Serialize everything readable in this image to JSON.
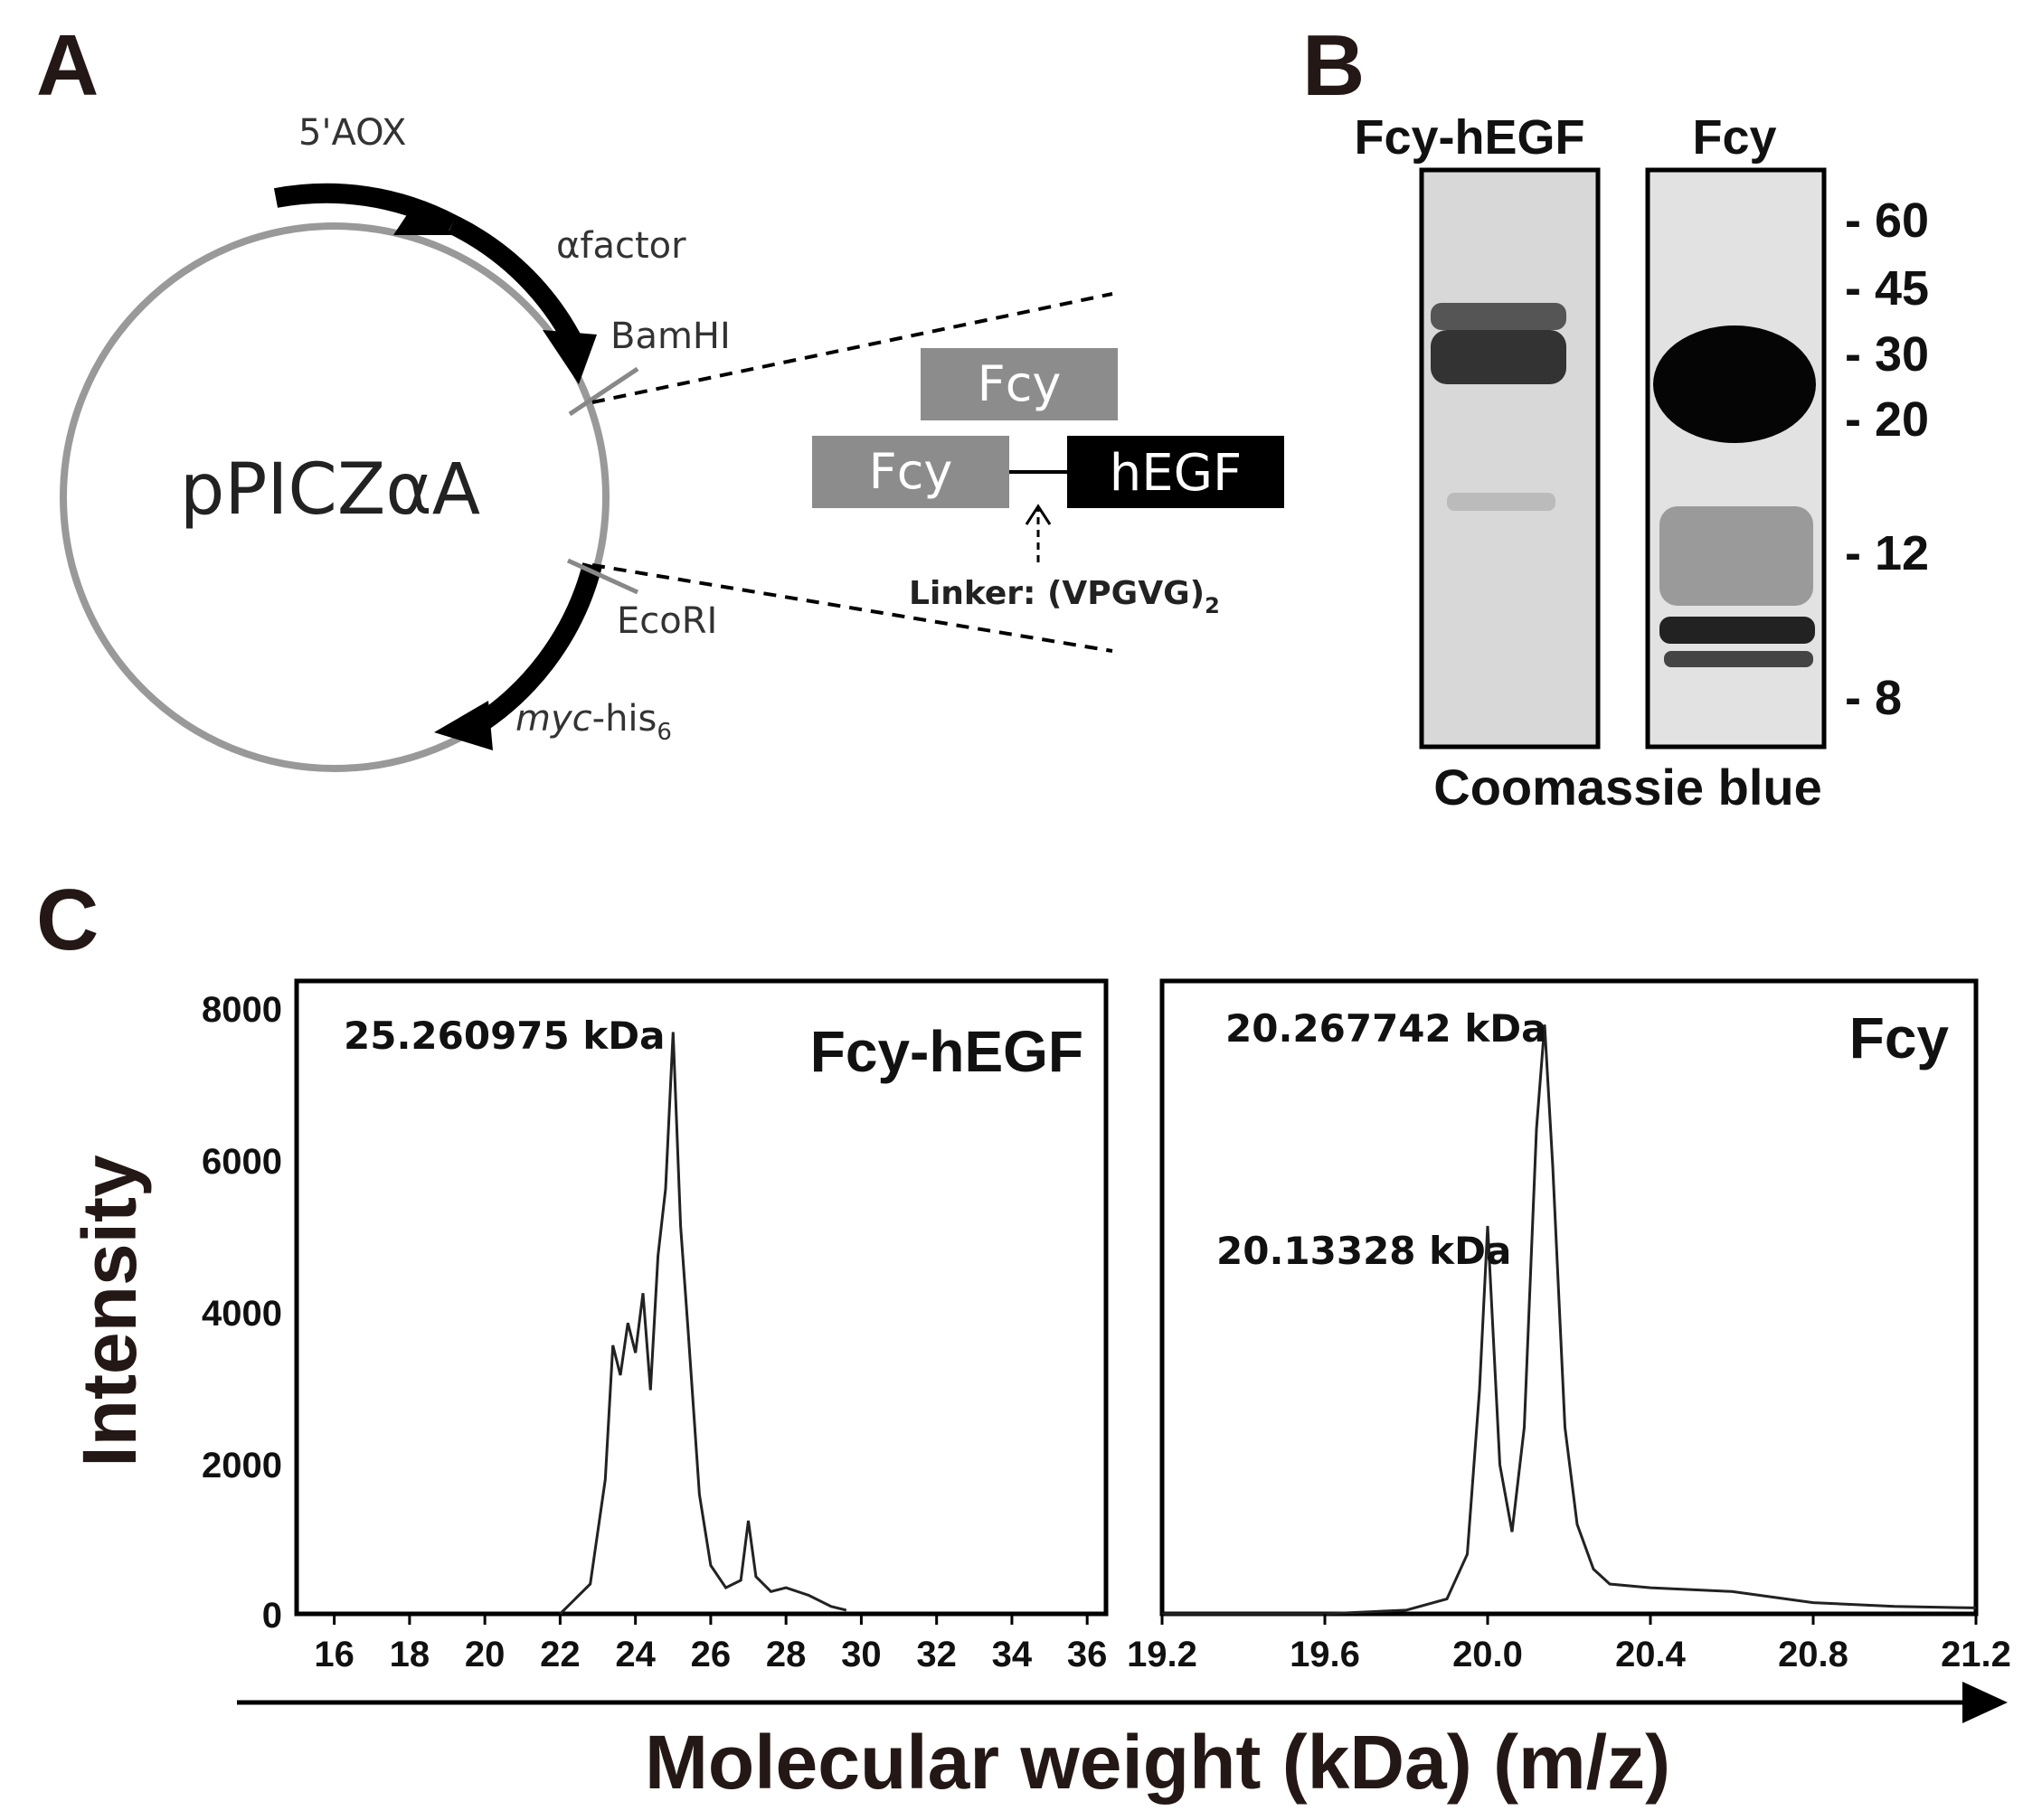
{
  "panel_a": {
    "letter": "A",
    "plasmid_name": "pPICZαA",
    "label_5aox": "5'AOX",
    "label_afactor": "αfactor",
    "label_bamhi": "BamHI",
    "label_ecori": "EcoRI",
    "label_myc": "myc",
    "label_his": "-his",
    "label_his_sub": "6",
    "box_fcy_top": "Fcy",
    "box_fcy_bottom": "Fcy",
    "box_hegf": "hEGF",
    "linker_label": "Linker: (VPGVG)",
    "linker_sub": "2",
    "colors": {
      "gray": "#8c8c8c",
      "black": "#000000"
    }
  },
  "panel_b": {
    "letter": "B",
    "lane1_label": "Fcy-hEGF",
    "lane2_label": "Fcy",
    "markers": [
      "- 60",
      "- 45",
      "- 30",
      "- 20",
      "- 12",
      "- 8"
    ],
    "caption": "Coomassie blue"
  },
  "panel_c": {
    "letter": "C",
    "ylabel": "Intensity",
    "xlabel": "Molecular weight (kDa) (m/z)",
    "yticks": [
      "8000",
      "6000",
      "4000",
      "2000",
      "0"
    ],
    "left_plot": {
      "title": "Fcy-hEGF",
      "annotation": "25.260975 kDa",
      "xticks": [
        "16",
        "18",
        "20",
        "22",
        "24",
        "26",
        "28",
        "30",
        "32",
        "34",
        "36"
      ]
    },
    "right_plot": {
      "title": "Fcy",
      "annotation_main": "20.267742 kDa",
      "annotation_second": "20.13328 kDa",
      "xticks": [
        "19.2",
        "19.6",
        "20.0",
        "20.4",
        "20.8",
        "21.2"
      ]
    }
  },
  "chart_data": [
    {
      "type": "line",
      "title": "Fcy-hEGF",
      "xlabel": "Molecular weight (kDa) (m/z)",
      "ylabel": "Intensity",
      "xlim": [
        15,
        36.5
      ],
      "ylim": [
        0,
        8000
      ],
      "x": [
        22.0,
        22.8,
        23.2,
        23.4,
        23.6,
        23.8,
        24.0,
        24.2,
        24.4,
        24.6,
        24.8,
        25.0,
        25.2,
        25.4,
        25.7,
        26.0,
        26.4,
        26.8,
        27.0,
        27.2,
        27.6,
        28.0,
        28.6,
        29.2,
        29.6
      ],
      "y": [
        0,
        400,
        1800,
        3600,
        3200,
        3900,
        3500,
        4300,
        3000,
        4800,
        5700,
        7800,
        5200,
        3800,
        1600,
        650,
        350,
        450,
        1250,
        500,
        300,
        350,
        250,
        100,
        50
      ]
    },
    {
      "type": "line",
      "title": "Fcy",
      "xlabel": "Molecular weight (kDa) (m/z)",
      "ylabel": "Intensity",
      "xlim": [
        19.2,
        21.2
      ],
      "ylim": [
        0,
        8000
      ],
      "x": [
        19.2,
        19.6,
        19.8,
        19.9,
        19.95,
        19.98,
        20.0,
        20.03,
        20.06,
        20.09,
        20.12,
        20.14,
        20.16,
        20.19,
        20.22,
        20.26,
        20.3,
        20.4,
        20.6,
        20.8,
        21.0,
        21.2
      ],
      "y": [
        0,
        0,
        50,
        200,
        800,
        3000,
        5200,
        2000,
        1100,
        2500,
        6500,
        7900,
        6000,
        2500,
        1200,
        600,
        400,
        350,
        300,
        150,
        100,
        80
      ]
    }
  ]
}
